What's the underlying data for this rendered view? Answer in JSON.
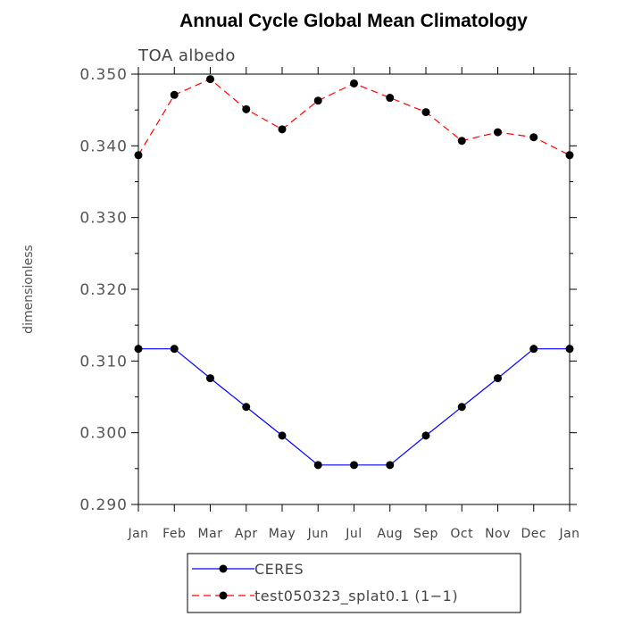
{
  "chart_data": {
    "type": "line",
    "title": "Annual Cycle Global Mean Climatology",
    "subtitle": "TOA albedo",
    "ylabel": "dimensionless",
    "xlabel": "",
    "ylim": [
      0.29,
      0.35
    ],
    "yticks": [
      "0.290",
      "0.300",
      "0.310",
      "0.320",
      "0.330",
      "0.340",
      "0.350"
    ],
    "categories": [
      "Jan",
      "Feb",
      "Mar",
      "Apr",
      "May",
      "Jun",
      "Jul",
      "Aug",
      "Sep",
      "Oct",
      "Nov",
      "Dec",
      "Jan"
    ],
    "series": [
      {
        "name": "CERES",
        "color": "#0000ff",
        "line_style": "solid",
        "marker": "filled-circle",
        "values": [
          0.3117,
          0.3117,
          0.3076,
          0.3036,
          0.2996,
          0.2955,
          0.2955,
          0.2955,
          0.2996,
          0.3036,
          0.3076,
          0.3117,
          0.3117
        ]
      },
      {
        "name": "test050323_splat0.1 (1−1)",
        "color": "#ff0000",
        "line_style": "dashed",
        "marker": "filled-circle",
        "values": [
          0.3387,
          0.3471,
          0.3493,
          0.3451,
          0.3423,
          0.3463,
          0.3487,
          0.3467,
          0.3447,
          0.3407,
          0.3419,
          0.3412,
          0.3387
        ]
      }
    ],
    "legend_position": "bottom-center",
    "grid": false
  }
}
